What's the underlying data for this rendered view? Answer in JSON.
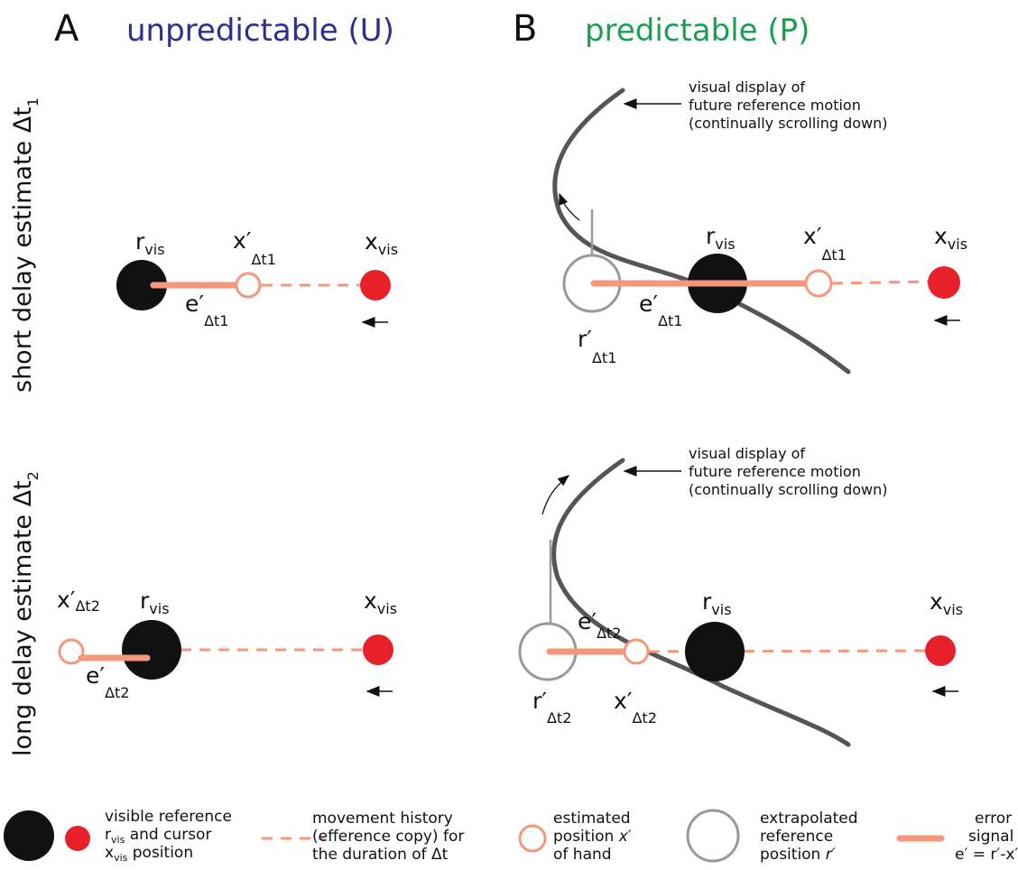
{
  "header": {
    "a_letter": "A",
    "a_title": "unpredictable (U)",
    "b_letter": "B",
    "b_title": "predictable (P)"
  },
  "row_labels": [
    {
      "text": "short delay estimate Δt",
      "sub": "1"
    },
    {
      "text": "long delay estimate Δt",
      "sub": "2"
    }
  ],
  "cells": {
    "a1": {
      "r": {
        "main": "r",
        "sub": "vis"
      },
      "x_est": {
        "main": "x′",
        "sub": "Δt1"
      },
      "x": {
        "main": "x",
        "sub": "vis"
      },
      "e": {
        "main": "e′",
        "sub": "Δt1"
      }
    },
    "b1": {
      "r": {
        "main": "r",
        "sub": "vis"
      },
      "x_est": {
        "main": "x′",
        "sub": "Δt1"
      },
      "x": {
        "main": "x",
        "sub": "vis"
      },
      "e": {
        "main": "e′",
        "sub": "Δt1"
      },
      "r_ext": {
        "main": "r′",
        "sub": "Δt1"
      },
      "annotation": [
        "visual display of",
        "future reference motion",
        "(continually scrolling down)"
      ]
    },
    "a2": {
      "r": {
        "main": "r",
        "sub": "vis"
      },
      "x_est": {
        "main": "x′",
        "sub": "Δt2"
      },
      "x": {
        "main": "x",
        "sub": "vis"
      },
      "e": {
        "main": "e′",
        "sub": "Δt2"
      }
    },
    "b2": {
      "r": {
        "main": "r",
        "sub": "vis"
      },
      "x_est": {
        "main": "x′",
        "sub": "Δt2"
      },
      "x": {
        "main": "x",
        "sub": "vis"
      },
      "e": {
        "main": "e′",
        "sub": "Δt2"
      },
      "r_ext": {
        "main": "r′",
        "sub": "Δt2"
      },
      "annotation": [
        "visual display of",
        "future reference motion",
        "(continually scrolling down)"
      ]
    }
  },
  "legend": {
    "reference": {
      "line1": "visible reference",
      "r": "r",
      "r_sub": "vis",
      "line2_rest": " and cursor",
      "x": "x",
      "x_sub": "vis",
      "line3_rest": " position"
    },
    "history": [
      "movement history",
      "(efference copy) for",
      "the duration of Δt"
    ],
    "estimated": {
      "line1": "estimated",
      "line2": "position ",
      "symbol": "x′",
      "line3": "of hand"
    },
    "extrapolated": {
      "line1": "extrapolated",
      "line2": "reference",
      "line3": "position ",
      "symbol": "r′"
    },
    "error": [
      "error",
      "signal",
      "e′ = r′-x′"
    ]
  }
}
